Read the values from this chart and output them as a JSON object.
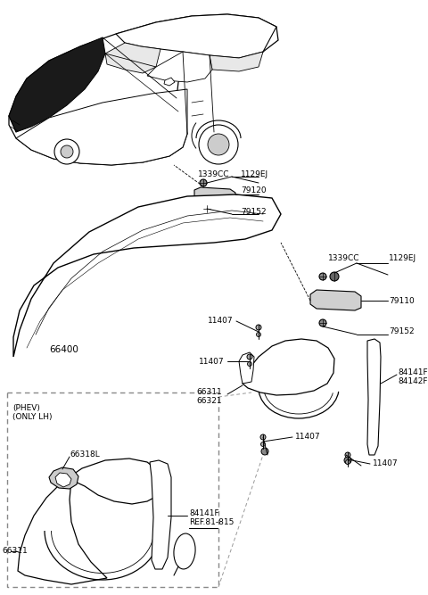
{
  "bg_color": "#ffffff",
  "lc": "#000000",
  "dc": "#999999",
  "labels": {
    "1339CC_top": "1339CC",
    "1129EJ_top": "1129EJ",
    "79120": "79120",
    "79152_top": "79152",
    "66400": "66400",
    "1339CC_rt": "1339CC",
    "1129EJ_rt": "1129EJ",
    "79110": "79110",
    "79152_rt": "79152",
    "11407_a": "11407",
    "11407_b": "11407",
    "11407_c": "11407",
    "11407_d": "11407",
    "66311_main": "66311",
    "66321": "66321",
    "84141F_main": "84141F",
    "84142F": "84142F",
    "phev_label": "(PHEV)\n(ONLY LH)",
    "66318L": "66318L",
    "66311_det": "66311",
    "84141F_det": "84141F",
    "ref": "REF.81-815"
  }
}
